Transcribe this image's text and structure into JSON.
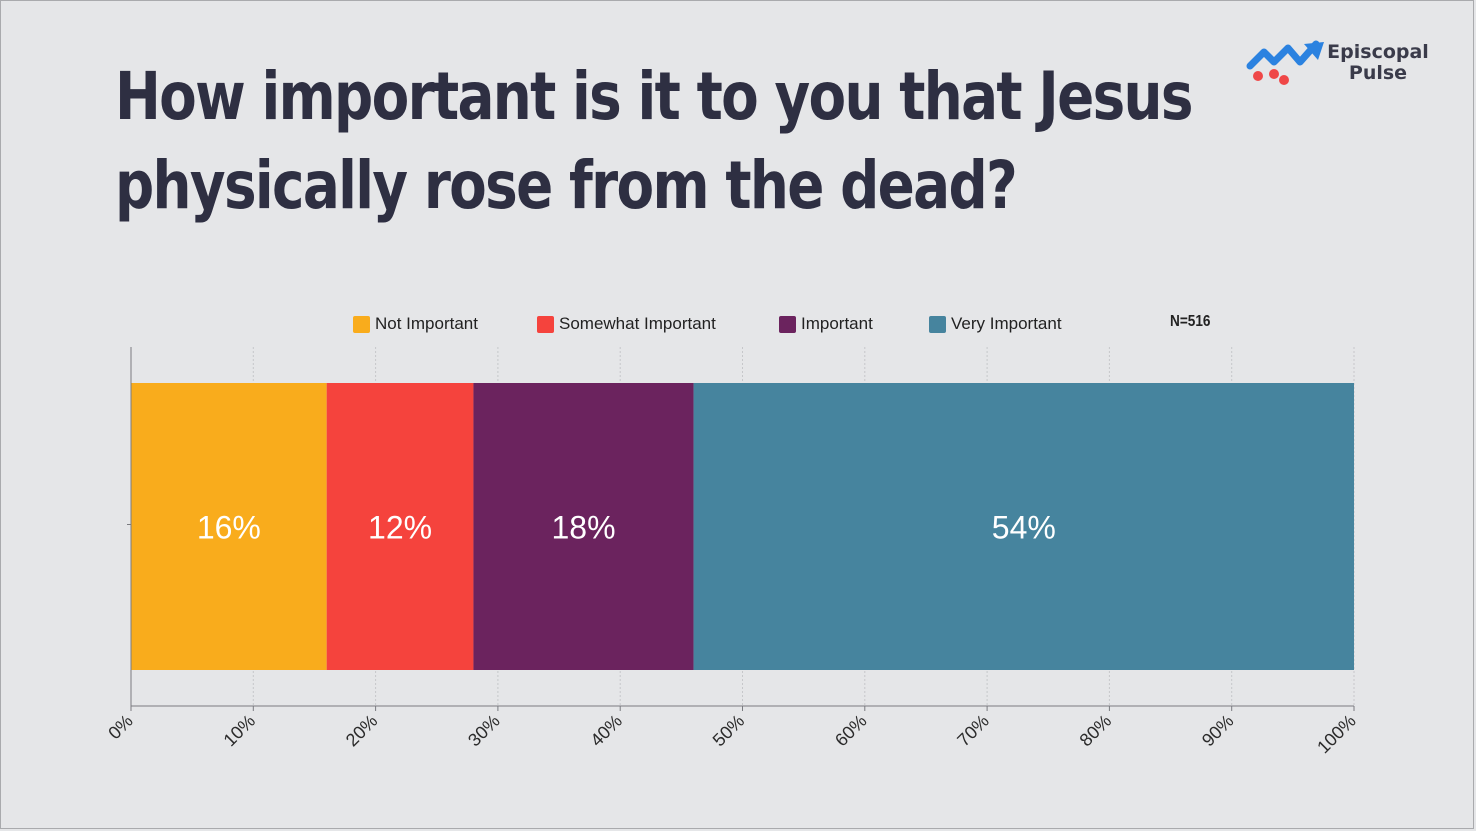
{
  "title_line1": "How important is it to you that Jesus",
  "title_line2": "physically rose from the dead?",
  "logo": {
    "line1": "Episcopal",
    "line2": "Pulse",
    "icon": "trend-arrow-icon"
  },
  "n_label": "N=516",
  "colors": {
    "not_important": "#f9ac1c",
    "somewhat_important": "#f5433d",
    "important": "#6b235e",
    "very_important": "#46849e",
    "background": "#e5e6e8",
    "grid": "#c6c7ca",
    "axis": "#7a7b80"
  },
  "chart_data": {
    "type": "bar",
    "orientation": "horizontal",
    "stacked": true,
    "title": "How important is it to you that Jesus physically rose from the dead?",
    "xlim": [
      0,
      100
    ],
    "x_tick_labels": [
      "0%",
      "10%",
      "20%",
      "30%",
      "40%",
      "50%",
      "60%",
      "70%",
      "80%",
      "90%",
      "100%"
    ],
    "grid": true,
    "legend_position": "top",
    "annotation": "N=516",
    "series": [
      {
        "name": "Not Important",
        "values": [
          16
        ],
        "label": "16%",
        "color": "#f9ac1c"
      },
      {
        "name": "Somewhat Important",
        "values": [
          12
        ],
        "label": "12%",
        "color": "#f5433d"
      },
      {
        "name": "Important",
        "values": [
          18
        ],
        "label": "18%",
        "color": "#6b235e"
      },
      {
        "name": "Very Important",
        "values": [
          54
        ],
        "label": "54%",
        "color": "#46849e"
      }
    ]
  }
}
